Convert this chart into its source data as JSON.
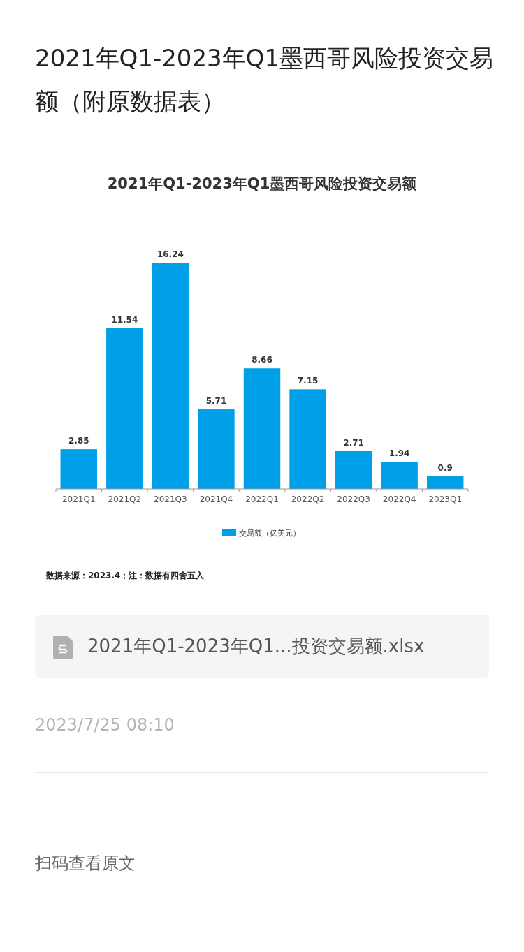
{
  "chart_data": {
    "type": "bar",
    "title": "2021年Q1-2023年Q1墨西哥风险投资交易额（附原数据表）",
    "subtitle": "2021年Q1-2023年Q1墨西哥风险投资交易额",
    "categories": [
      "2021Q1",
      "2021Q2",
      "2021Q3",
      "2021Q4",
      "2022Q1",
      "2022Q2",
      "2022Q3",
      "2022Q4",
      "2023Q1"
    ],
    "series": [
      {
        "name": "交易额（亿美元）",
        "color": "#00a0e9",
        "values": [
          2.85,
          11.54,
          16.24,
          5.71,
          8.66,
          7.15,
          2.71,
          1.94,
          0.9
        ]
      }
    ],
    "data_labels": true,
    "legend": "bottom",
    "grid": false,
    "annotations": [
      "数据来源：2023.4；注：数据有四舍五入",
      "2021年Q1-2023年Q1...投资交易额.xlsx",
      "2023/7/25 08:10",
      "扫码查看原文"
    ]
  }
}
